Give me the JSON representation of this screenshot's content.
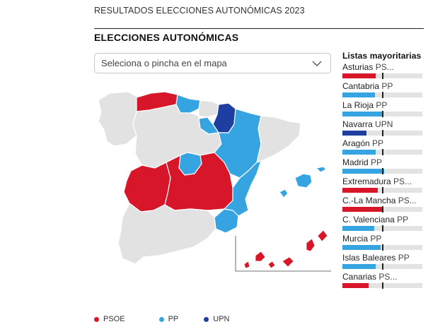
{
  "header": {
    "kicker": "RESULTADOS ELECCIONES AUTONÓMICAS 2023",
    "title": "ELECCIONES AUTONÓMICAS"
  },
  "selector": {
    "placeholder": "Seleciona o pincha en el mapa",
    "icon": "chevron-down-icon"
  },
  "colors": {
    "PSOE": "#d8162a",
    "PP": "#35a4e0",
    "UPN": "#1f3fa0",
    "none": "#e2e2e2"
  },
  "sidebar": {
    "title": "Listas mayoritarias",
    "items": [
      {
        "region": "Asturias",
        "party": "PS...",
        "winner": "PSOE",
        "share": 0.42
      },
      {
        "region": "Cantabria",
        "party": "PP",
        "winner": "PP",
        "share": 0.41
      },
      {
        "region": "La Rioja",
        "party": "PP",
        "winner": "PP",
        "share": 0.5
      },
      {
        "region": "Navarra",
        "party": "UPN",
        "winner": "UPN",
        "share": 0.3
      },
      {
        "region": "Aragón",
        "party": "PP",
        "winner": "PP",
        "share": 0.42
      },
      {
        "region": "Madrid",
        "party": "PP",
        "winner": "PP",
        "share": 0.52
      },
      {
        "region": "Extremadura",
        "party": "PS...",
        "winner": "PSOE",
        "share": 0.44
      },
      {
        "region": "C.-La Mancha",
        "party": "PS...",
        "winner": "PSOE",
        "share": 0.5
      },
      {
        "region": "C. Valenciana",
        "party": "PP",
        "winner": "PP",
        "share": 0.4
      },
      {
        "region": "Murcia",
        "party": "PP",
        "winner": "PP",
        "share": 0.48
      },
      {
        "region": "Islas Baleares",
        "party": "PP",
        "winner": "PP",
        "share": 0.42
      },
      {
        "region": "Canarias",
        "party": "PS...",
        "winner": "PSOE",
        "share": 0.33
      }
    ]
  },
  "legend": [
    {
      "label": "PSOE",
      "color": "#d8162a"
    },
    {
      "label": "PP",
      "color": "#35a4e0"
    },
    {
      "label": "UPN",
      "color": "#1f3fa0"
    }
  ]
}
